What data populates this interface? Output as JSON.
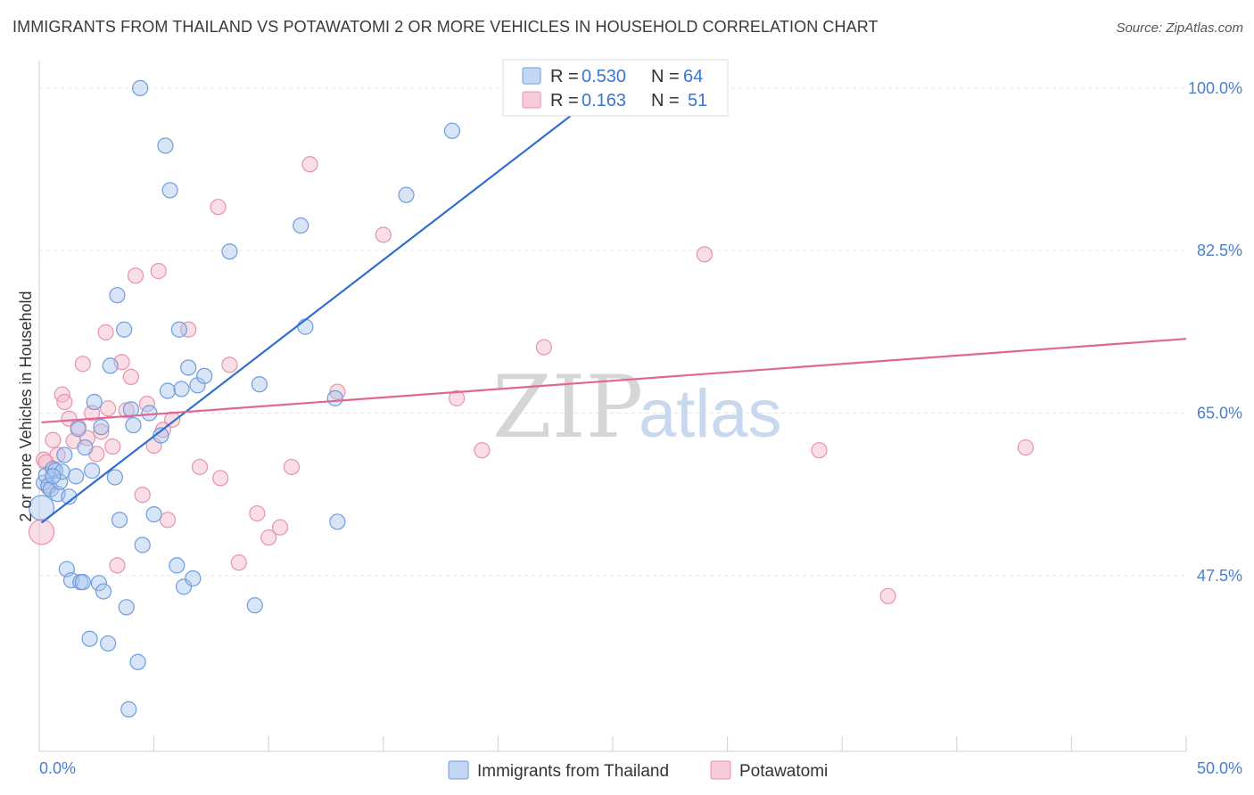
{
  "title": "IMMIGRANTS FROM THAILAND VS POTAWATOMI 2 OR MORE VEHICLES IN HOUSEHOLD CORRELATION CHART",
  "source": "Source: ZipAtlas.com",
  "watermark": {
    "zip": "ZIP",
    "atlas": "atlas"
  },
  "colors": {
    "blue_fill": "#a9c6ee",
    "blue_stroke": "#6d9ce0",
    "blue_line": "#2f6fd0",
    "pink_fill": "#f4b6c8",
    "pink_stroke": "#e793ad",
    "pink_line": "#e06693",
    "tick_text": "#4a7fd0",
    "grid": "#e3e3e3"
  },
  "legend": {
    "rows": [
      {
        "r_label": "R =",
        "r_value": "0.530",
        "n_label": "N =",
        "n_value": "64"
      },
      {
        "r_label": "R =",
        "r_value": "0.163",
        "n_label": "N =",
        "n_value": "51"
      }
    ]
  },
  "bottom_legend": [
    "Immigrants from Thailand",
    "Potawatomi"
  ],
  "chart_data": {
    "type": "scatter",
    "title": "IMMIGRANTS FROM THAILAND VS POTAWATOMI 2 OR MORE VEHICLES IN HOUSEHOLD CORRELATION CHART",
    "xlabel": "",
    "ylabel": "2 or more Vehicles in Household",
    "xlim": [
      0,
      50
    ],
    "ylim": [
      30.5,
      102
    ],
    "x_tick_labels": [
      "0.0%",
      "50.0%"
    ],
    "y_ticks": [
      47.5,
      65.0,
      82.5,
      100.0
    ],
    "y_tick_labels": [
      "47.5%",
      "65.0%",
      "82.5%",
      "100.0%"
    ],
    "grid": true,
    "legend_position": "top-center",
    "series": [
      {
        "name": "Immigrants from Thailand",
        "color": "#a9c6ee",
        "R": 0.53,
        "N": 64,
        "trend": {
          "x": [
            0.1,
            25.0
          ],
          "y": [
            53.2,
            100.5
          ]
        },
        "points": [
          [
            0.1,
            54.8
          ],
          [
            0.2,
            57.5
          ],
          [
            0.3,
            58.3
          ],
          [
            0.4,
            57.2
          ],
          [
            0.5,
            56.8
          ],
          [
            0.6,
            59.0
          ],
          [
            0.7,
            58.8
          ],
          [
            0.8,
            56.3
          ],
          [
            0.9,
            57.6
          ],
          [
            1.0,
            58.7
          ],
          [
            1.1,
            60.5
          ],
          [
            1.2,
            48.2
          ],
          [
            1.3,
            56.0
          ],
          [
            1.4,
            47.0
          ],
          [
            1.6,
            58.2
          ],
          [
            1.7,
            63.3
          ],
          [
            1.8,
            46.8
          ],
          [
            1.9,
            46.8
          ],
          [
            2.0,
            61.3
          ],
          [
            2.2,
            40.7
          ],
          [
            2.3,
            58.8
          ],
          [
            2.4,
            66.2
          ],
          [
            2.6,
            46.7
          ],
          [
            2.7,
            63.5
          ],
          [
            2.8,
            45.8
          ],
          [
            3.0,
            40.2
          ],
          [
            3.1,
            70.1
          ],
          [
            3.3,
            58.1
          ],
          [
            3.4,
            77.7
          ],
          [
            3.5,
            53.5
          ],
          [
            3.7,
            74.0
          ],
          [
            3.8,
            44.1
          ],
          [
            3.9,
            33.1
          ],
          [
            4.0,
            65.4
          ],
          [
            4.1,
            63.7
          ],
          [
            4.3,
            38.2
          ],
          [
            4.4,
            100.0
          ],
          [
            4.5,
            50.8
          ],
          [
            4.8,
            65.0
          ],
          [
            5.0,
            54.1
          ],
          [
            5.3,
            62.6
          ],
          [
            5.5,
            93.8
          ],
          [
            5.6,
            67.4
          ],
          [
            5.7,
            89.0
          ],
          [
            6.0,
            48.6
          ],
          [
            6.1,
            74.0
          ],
          [
            6.2,
            67.6
          ],
          [
            6.3,
            46.3
          ],
          [
            6.5,
            69.9
          ],
          [
            6.7,
            47.2
          ],
          [
            6.9,
            68.0
          ],
          [
            7.2,
            69.0
          ],
          [
            8.3,
            82.4
          ],
          [
            9.4,
            44.3
          ],
          [
            9.6,
            68.1
          ],
          [
            11.4,
            85.2
          ],
          [
            11.6,
            74.3
          ],
          [
            12.9,
            66.6
          ],
          [
            13.0,
            53.3
          ],
          [
            16.0,
            88.5
          ],
          [
            18.0,
            95.4
          ],
          [
            22.0,
            100.3
          ],
          [
            24.0,
            100.1
          ],
          [
            0.6,
            58.2
          ]
        ]
      },
      {
        "name": "Potawatomi",
        "color": "#f4b6c8",
        "R": 0.163,
        "N": 51,
        "trend": {
          "x": [
            0.1,
            50.0
          ],
          "y": [
            64.0,
            73.0
          ]
        },
        "points": [
          [
            0.1,
            52.2
          ],
          [
            0.2,
            60.0
          ],
          [
            0.4,
            57.0
          ],
          [
            0.6,
            62.1
          ],
          [
            0.8,
            60.5
          ],
          [
            1.0,
            67.0
          ],
          [
            1.1,
            66.2
          ],
          [
            1.3,
            64.4
          ],
          [
            1.5,
            62.0
          ],
          [
            1.7,
            63.5
          ],
          [
            1.9,
            70.3
          ],
          [
            2.1,
            62.3
          ],
          [
            2.3,
            65.0
          ],
          [
            2.5,
            60.6
          ],
          [
            2.7,
            63.0
          ],
          [
            2.9,
            73.7
          ],
          [
            3.0,
            65.5
          ],
          [
            3.2,
            61.4
          ],
          [
            3.4,
            48.6
          ],
          [
            3.6,
            70.5
          ],
          [
            3.8,
            65.3
          ],
          [
            4.0,
            68.9
          ],
          [
            4.2,
            79.8
          ],
          [
            4.5,
            56.2
          ],
          [
            4.7,
            66.0
          ],
          [
            5.0,
            61.5
          ],
          [
            5.2,
            80.3
          ],
          [
            5.4,
            63.2
          ],
          [
            5.6,
            53.5
          ],
          [
            5.8,
            64.3
          ],
          [
            6.5,
            74.0
          ],
          [
            7.0,
            59.2
          ],
          [
            7.8,
            87.2
          ],
          [
            7.9,
            58.0
          ],
          [
            8.3,
            70.2
          ],
          [
            9.5,
            54.2
          ],
          [
            10.0,
            51.6
          ],
          [
            11.0,
            59.2
          ],
          [
            11.8,
            91.8
          ],
          [
            13.0,
            67.3
          ],
          [
            15.0,
            84.2
          ],
          [
            18.2,
            66.6
          ],
          [
            19.3,
            61.0
          ],
          [
            22.0,
            72.1
          ],
          [
            29.0,
            82.1
          ],
          [
            34.0,
            61.0
          ],
          [
            37.0,
            45.3
          ],
          [
            43.0,
            61.3
          ],
          [
            8.7,
            48.9
          ],
          [
            10.5,
            52.7
          ],
          [
            0.3,
            59.7
          ]
        ]
      }
    ]
  }
}
